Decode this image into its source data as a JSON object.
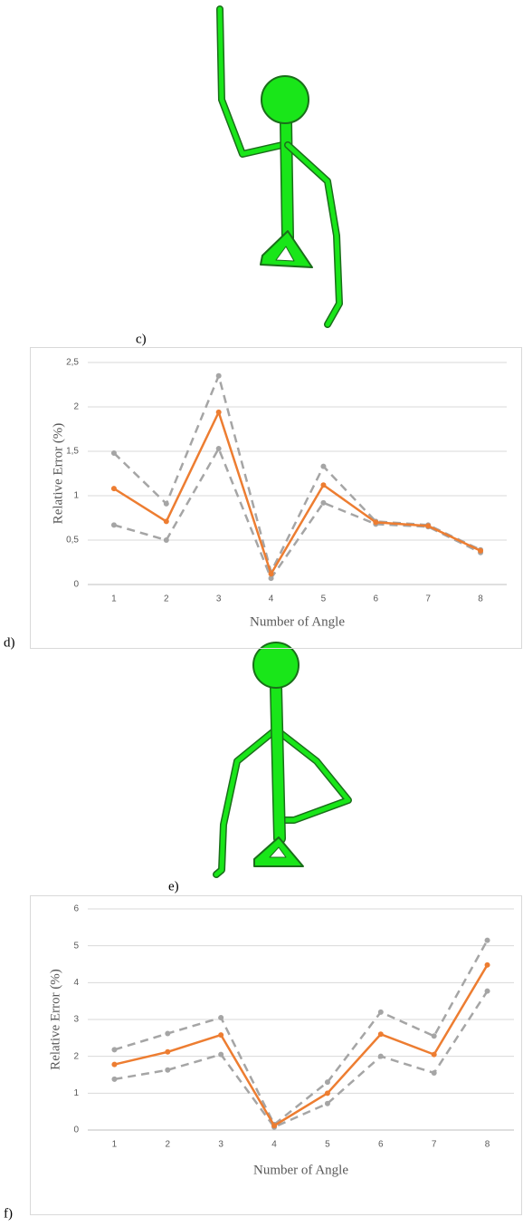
{
  "figure_labels": [
    "c)",
    "d)",
    "e)",
    "f)"
  ],
  "chart_data": [
    {
      "type": "line",
      "y_label": "Relative Error (%)",
      "x_label": "Number of Angle",
      "categories": [
        "1",
        "2",
        "3",
        "4",
        "5",
        "6",
        "7",
        "8"
      ],
      "ylim": [
        0,
        2.5
      ],
      "yticks": [
        0,
        {
          "value": 0.5,
          "label": "0,5"
        },
        1,
        {
          "value": 1.5,
          "label": "1,5"
        },
        2,
        {
          "value": 2.5,
          "label": "2,5"
        }
      ],
      "grid": true,
      "series": [
        {
          "color": "#a5a5a5",
          "dashed": true,
          "values": [
            1.48,
            0.91,
            2.35,
            0.14,
            1.33,
            0.71,
            0.67,
            0.39
          ]
        },
        {
          "color": "#a5a5a5",
          "dashed": true,
          "values": [
            0.67,
            0.5,
            1.53,
            0.07,
            0.92,
            0.68,
            0.65,
            0.36
          ]
        },
        {
          "color": "#ed7d31",
          "dashed": false,
          "values": [
            1.08,
            0.71,
            1.94,
            0.12,
            1.12,
            0.7,
            0.66,
            0.38
          ]
        }
      ]
    },
    {
      "type": "line",
      "y_label": "Relative Error (%)",
      "x_label": "Number of Angle",
      "categories": [
        "1",
        "2",
        "3",
        "4",
        "5",
        "6",
        "7",
        "8"
      ],
      "ylim": [
        0,
        6
      ],
      "yticks": [
        0,
        1,
        2,
        3,
        4,
        5,
        6
      ],
      "grid": true,
      "series": [
        {
          "color": "#a5a5a5",
          "dashed": true,
          "values": [
            2.18,
            2.62,
            3.05,
            0.15,
            1.3,
            3.2,
            2.55,
            5.15
          ]
        },
        {
          "color": "#a5a5a5",
          "dashed": true,
          "values": [
            1.38,
            1.63,
            2.05,
            0.08,
            0.72,
            2.0,
            1.55,
            3.77
          ]
        },
        {
          "color": "#ed7d31",
          "dashed": false,
          "values": [
            1.78,
            2.12,
            2.58,
            0.12,
            1.0,
            2.6,
            2.05,
            4.48
          ]
        }
      ]
    }
  ]
}
